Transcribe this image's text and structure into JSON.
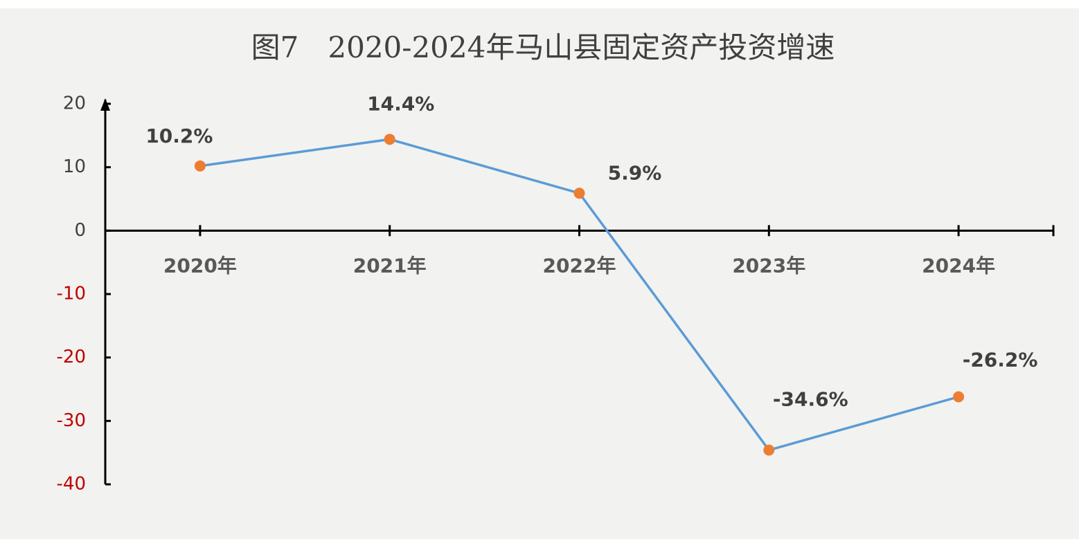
{
  "chart_data": {
    "type": "line",
    "title": "图7　2020-2024年马山县固定资产投资增速",
    "categories": [
      "2020年",
      "2021年",
      "2022年",
      "2023年",
      "2024年"
    ],
    "series": [
      {
        "values": [
          10.2,
          14.4,
          5.9,
          -34.6,
          -26.2
        ],
        "value_labels": [
          "10.2%",
          "14.4%",
          "5.9%",
          "-34.6%",
          "-26.2%"
        ],
        "color": "#5b9bd5",
        "marker_color": "#ed7d31"
      }
    ],
    "ylim": [
      -40,
      20
    ],
    "yticks": [
      -40,
      -30,
      -20,
      -10,
      0,
      10,
      20
    ],
    "tick_label_color": "#404040",
    "negative_tick_label_color": "#c00000",
    "grid": false
  }
}
